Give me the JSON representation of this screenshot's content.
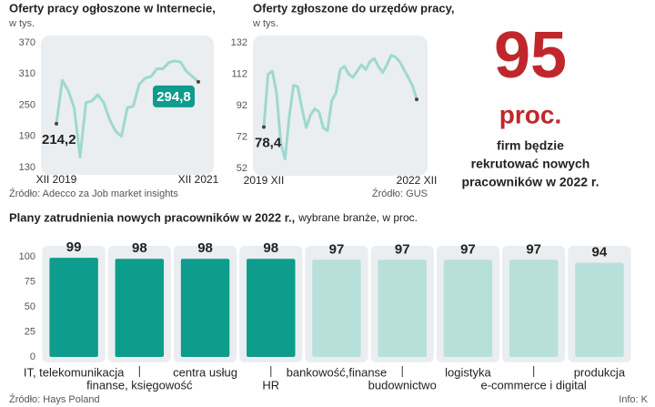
{
  "chart_data": [
    {
      "type": "line",
      "title": "Oferty pracy ogłoszone w Internecie,",
      "subtitle": "w tys.",
      "categories": [
        "XII 2019",
        null,
        null,
        null,
        null,
        null,
        null,
        null,
        null,
        null,
        null,
        null,
        null,
        null,
        null,
        null,
        null,
        null,
        null,
        null,
        null,
        null,
        null,
        null,
        "XII 2021"
      ],
      "values": [
        214.2,
        298,
        278,
        245,
        150,
        255,
        258,
        270,
        255,
        222,
        200,
        190,
        245,
        248,
        290,
        302,
        305,
        320,
        320,
        332,
        335,
        333,
        315,
        305,
        294.8
      ],
      "value_labels": [
        "214,2",
        null,
        null,
        null,
        null,
        null,
        null,
        null,
        null,
        null,
        null,
        null,
        null,
        null,
        null,
        null,
        null,
        null,
        null,
        null,
        null,
        null,
        null,
        null,
        "294,8"
      ],
      "color": "#9fd8d0",
      "ylim": [
        130,
        370
      ],
      "yticks": [
        130,
        190,
        250,
        310,
        370
      ],
      "source": "Źródło: Adecco za Job market insights"
    },
    {
      "type": "line",
      "title": "Oferty zgłoszone do urzędów pracy,",
      "subtitle": "w tys.",
      "categories": [
        "2019 XII",
        null,
        null,
        null,
        null,
        null,
        null,
        null,
        null,
        null,
        null,
        null,
        null,
        null,
        null,
        null,
        null,
        null,
        null,
        null,
        null,
        null,
        null,
        null,
        null,
        null,
        null,
        null,
        null,
        null,
        null,
        null,
        null,
        null,
        null,
        null,
        "2022 XII"
      ],
      "values": [
        78.4,
        112,
        114,
        100,
        68,
        58,
        85,
        105,
        104,
        90,
        78,
        86,
        90,
        88,
        78,
        76,
        95,
        100,
        115,
        117,
        112,
        110,
        114,
        118,
        115,
        120,
        122,
        117,
        113,
        118,
        124,
        123,
        120,
        115,
        110,
        105,
        96
      ],
      "value_labels": [
        "78,4",
        null,
        null,
        null,
        null,
        null,
        null,
        null,
        null,
        null,
        null,
        null,
        null,
        null,
        null,
        null,
        null,
        null,
        null,
        null,
        null,
        null,
        null,
        null,
        null,
        null,
        null,
        null,
        null,
        null,
        null,
        null,
        null,
        null,
        null,
        null,
        null
      ],
      "color": "#9fd8d0",
      "ylim": [
        52,
        132
      ],
      "yticks": [
        52,
        72,
        92,
        112,
        132
      ],
      "source": "Źródło: GUS"
    },
    {
      "type": "bar",
      "title": "Plany zatrudnienia nowych pracowników w 2022 r.,",
      "subtitle": "wybrane branże, w proc.",
      "categories": [
        "IT, telekomunikacja",
        "finanse, księgowość",
        "centra usług",
        "HR",
        "bankowość,finanse",
        "budownictwo",
        "logistyka",
        "e-commerce i digital",
        "produkcja"
      ],
      "values": [
        99,
        98,
        98,
        98,
        97,
        97,
        97,
        97,
        94
      ],
      "colors": [
        "#0e9c8c",
        "#0e9c8c",
        "#0e9c8c",
        "#0e9c8c",
        "#b8e0db",
        "#b8e0db",
        "#b8e0db",
        "#b8e0db",
        "#b8e0db"
      ],
      "ylim": [
        0,
        100
      ],
      "yticks": [
        0,
        25,
        50,
        75,
        100
      ],
      "source": "Źródło: Hays Poland"
    }
  ],
  "callout": {
    "value": 95,
    "unit": "proc.",
    "lines": [
      "firm będzie",
      "rekrutować nowych",
      "pracowników w 2022 r."
    ]
  },
  "credit": "Info: K"
}
